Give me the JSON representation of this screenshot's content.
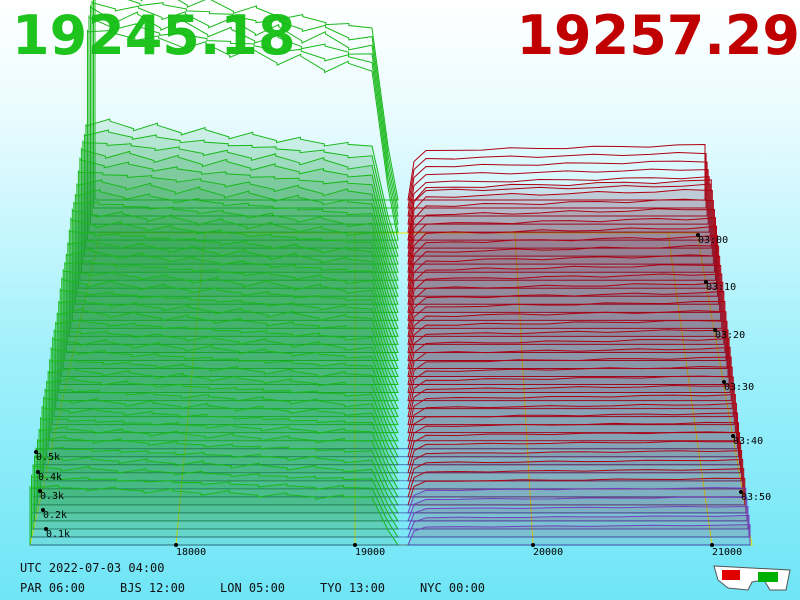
{
  "prices": {
    "bid": "19245.18",
    "ask": "19257.29"
  },
  "price_axis": [
    "18000",
    "19000",
    "20000",
    "21000"
  ],
  "time_axis": [
    "03:00",
    "03:10",
    "03:20",
    "03:30",
    "03:40",
    "03:50"
  ],
  "depth_axis": [
    "0.5k",
    "0.4k",
    "0.3k",
    "0.2k",
    "0.1k"
  ],
  "clock": {
    "utc": "UTC 2022-07-03 04:00",
    "cities": [
      "PAR 06:00",
      "BJS 12:00",
      "LON 05:00",
      "TYO 13:00",
      "NYC 00:00"
    ]
  }
}
